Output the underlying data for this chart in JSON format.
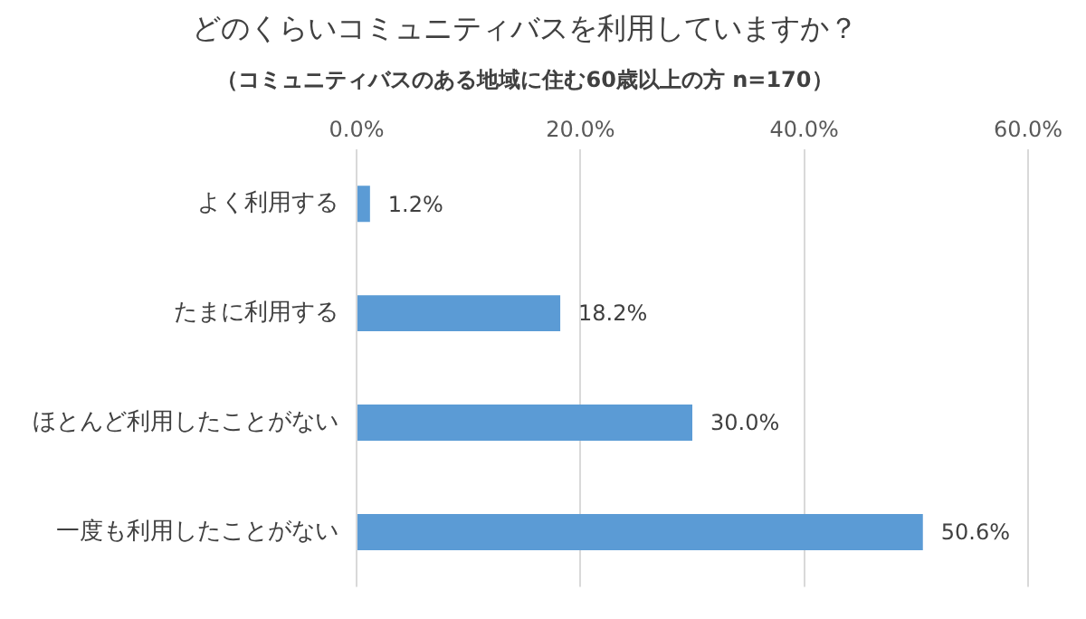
{
  "chart_data": {
    "type": "bar",
    "orientation": "horizontal",
    "title": "どのくらいコミュニティバスを利用していますか？",
    "subtitle": "（コミュニティバスのある地域に住む60歳以上の方 n=170）",
    "categories": [
      "よく利用する",
      "たまに利用する",
      "ほとんど利用したことがない",
      "一度も利用したことがない"
    ],
    "values": [
      1.2,
      18.2,
      30.0,
      50.6
    ],
    "value_labels": [
      "1.2%",
      "18.2%",
      "30.0%",
      "50.6%"
    ],
    "color": "#5b9bd5",
    "xlim": [
      0,
      60
    ],
    "xticks": [
      {
        "value": 0,
        "label": "0.0%"
      },
      {
        "value": 20,
        "label": "20.0%"
      },
      {
        "value": 40,
        "label": "40.0%"
      },
      {
        "value": 60,
        "label": "60.0%"
      }
    ],
    "grid": "x"
  }
}
